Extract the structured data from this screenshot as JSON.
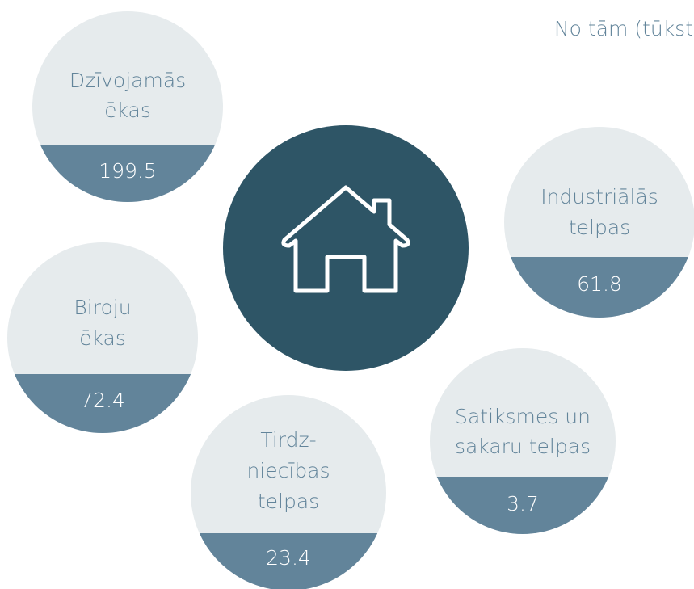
{
  "header": {
    "title": "No tām (tūkst"
  },
  "items": [
    {
      "label": [
        "Dzīvojamās",
        "ēkas"
      ],
      "value": 199.5
    },
    {
      "label": [
        "Industriālās",
        "telpas"
      ],
      "value": 61.8
    },
    {
      "label": [
        "Biroju",
        "ēkas"
      ],
      "value": 72.4
    },
    {
      "label": [
        "Satiksmes un",
        "sakaru telpas"
      ],
      "value": 3.7
    },
    {
      "label": [
        "Tirdz-",
        "niecības",
        "telpas"
      ],
      "value": 23.4
    }
  ]
}
